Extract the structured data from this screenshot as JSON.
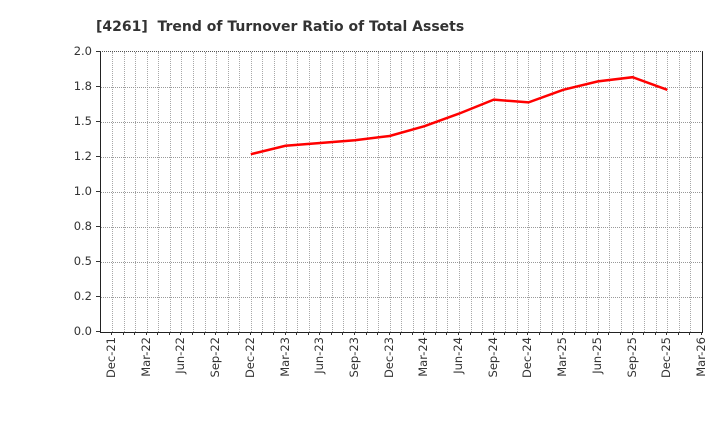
{
  "title": "[4261]  Trend of Turnover Ratio of Total Assets",
  "colors": {
    "line": "#ff0000",
    "grid": "#a8a8a8",
    "axis": "#222222",
    "title_text": "#333333",
    "tick_text": "#333333",
    "background": "#ffffff"
  },
  "chart_data": {
    "type": "line",
    "title": "[4261]  Trend of Turnover Ratio of Total Assets",
    "xlabel": "",
    "ylabel": "",
    "ylim": [
      0.0,
      2.0
    ],
    "grid": "dotted gray, monthly vertical lines and 0.25-step horizontal lines",
    "legend_position": "none",
    "x_tick_labels": [
      "Dec-21",
      "Mar-22",
      "Jun-22",
      "Sep-22",
      "Dec-22",
      "Mar-23",
      "Jun-23",
      "Sep-23",
      "Dec-23",
      "Mar-24",
      "Jun-24",
      "Sep-24",
      "Dec-24",
      "Mar-25",
      "Jun-25",
      "Sep-25",
      "Dec-25",
      "Mar-26"
    ],
    "y_tick_values": [
      0.0,
      0.25,
      0.5,
      0.75,
      1.0,
      1.25,
      1.5,
      1.75,
      2.0
    ],
    "y_tick_labels": [
      "0.0",
      "0.2",
      "0.5",
      "0.8",
      "1.0",
      "1.2",
      "1.5",
      "1.8",
      "2.0"
    ],
    "series": [
      {
        "name": "Turnover Ratio of Total Assets",
        "color": "#ff0000",
        "line_width": 2.5,
        "points": [
          {
            "x": "Dec-22",
            "y": 1.27
          },
          {
            "x": "Mar-23",
            "y": 1.33
          },
          {
            "x": "Jun-23",
            "y": 1.35
          },
          {
            "x": "Sep-23",
            "y": 1.37
          },
          {
            "x": "Dec-23",
            "y": 1.4
          },
          {
            "x": "Mar-24",
            "y": 1.47
          },
          {
            "x": "Jun-24",
            "y": 1.56
          },
          {
            "x": "Sep-24",
            "y": 1.66
          },
          {
            "x": "Dec-24",
            "y": 1.64
          },
          {
            "x": "Mar-25",
            "y": 1.73
          },
          {
            "x": "Jun-25",
            "y": 1.79
          },
          {
            "x": "Sep-25",
            "y": 1.82
          },
          {
            "x": "Dec-25",
            "y": 1.73
          }
        ]
      }
    ]
  }
}
